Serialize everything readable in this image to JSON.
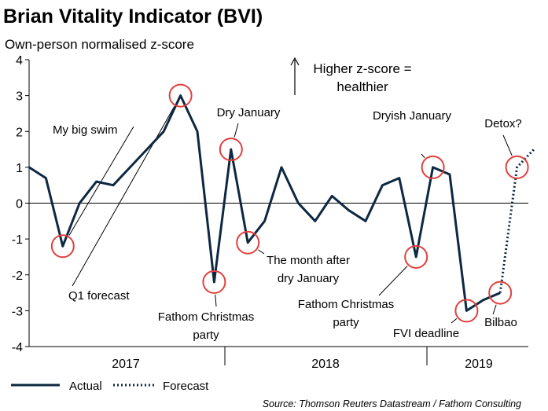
{
  "chart_data": {
    "type": "line",
    "title": "Brian Vitality Indicator (BVI)",
    "subtitle": "Own-person normalised z-score",
    "ylim": [
      -4,
      4
    ],
    "yticks": [
      4,
      3,
      2,
      1,
      0,
      -1,
      -2,
      -3,
      -4
    ],
    "year_labels": [
      "2017",
      "2018",
      "2019"
    ],
    "grid": false,
    "series": [
      {
        "name": "Actual",
        "color": "#0e2841",
        "style": "solid",
        "values": [
          1.0,
          0.7,
          -1.2,
          0.0,
          0.6,
          0.5,
          1.0,
          1.5,
          2.0,
          3.0,
          2.0,
          -2.2,
          1.5,
          -1.1,
          -0.5,
          1.0,
          0.0,
          -0.5,
          0.2,
          -0.2,
          -0.5,
          0.5,
          0.7,
          -1.5,
          1.0,
          0.8,
          -3.0,
          -2.7,
          -2.5
        ]
      },
      {
        "name": "Forecast",
        "color": "#0e2841",
        "style": "dotted",
        "values": [
          -2.5,
          1.0,
          1.5
        ],
        "start_index": 28
      }
    ],
    "highlight_circles": [
      {
        "index": 2,
        "value": -1.2
      },
      {
        "index": 9,
        "value": 3.0
      },
      {
        "index": 11,
        "value": -2.2
      },
      {
        "index": 12,
        "value": 1.5
      },
      {
        "index": 13,
        "value": -1.1
      },
      {
        "index": 23,
        "value": -1.5
      },
      {
        "index": 24,
        "value": 1.0
      },
      {
        "index": 26,
        "value": -3.0
      },
      {
        "index": 28,
        "value": -2.5
      },
      {
        "index": 29,
        "value": 1.0
      }
    ],
    "annotations": {
      "my_big_swim": "My big swim",
      "q1_forecast": "Q1 forecast",
      "fathom_party_1": [
        "Fathom Christmas",
        "party"
      ],
      "dry_january": "Dry January",
      "month_after": [
        "The month after",
        "dry January"
      ],
      "dryish_january": "Dryish January",
      "fathom_party_2": [
        "Fathom Christmas",
        "party"
      ],
      "fvi_deadline": "FVI deadline",
      "bilbao": "Bilbao",
      "detox": "Detox?"
    },
    "note": [
      "Higher z-score =",
      "healthier"
    ],
    "legend": {
      "actual": "Actual",
      "forecast": "Forecast"
    },
    "source": "Source: Thomson Reuters Datastream / Fathom Consulting",
    "colors": {
      "line": "#0e2841",
      "circle": "#e0403f"
    }
  }
}
